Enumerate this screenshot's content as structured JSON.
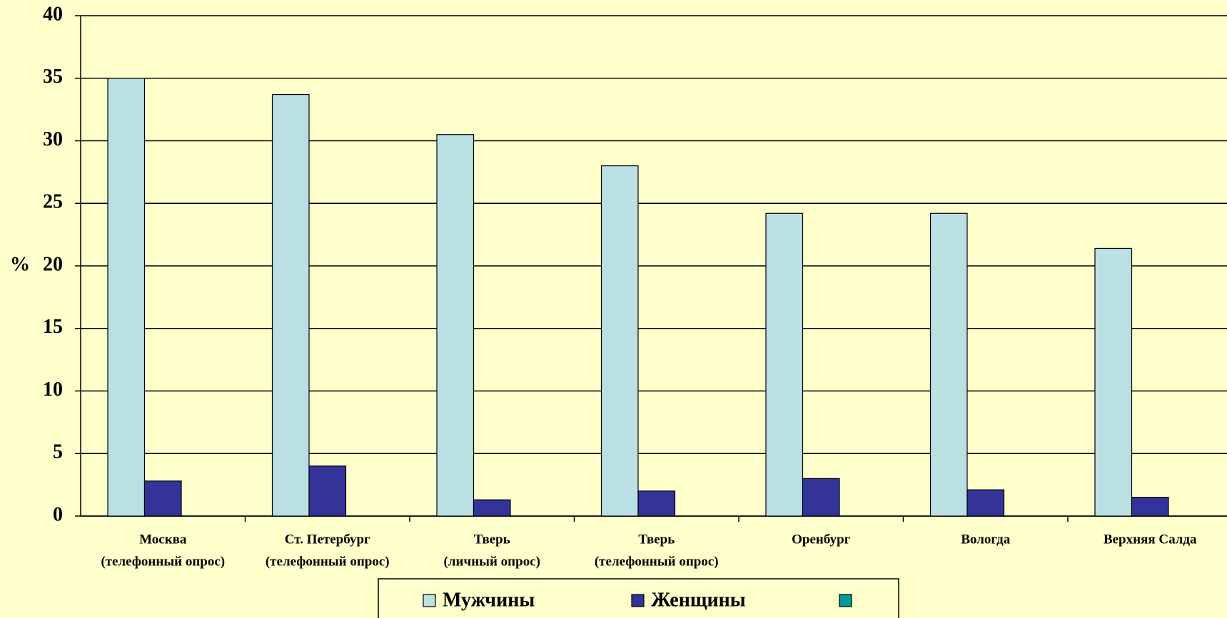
{
  "chart_data": {
    "type": "bar",
    "y_label": "%",
    "categories": [
      [
        "Москва",
        "(телефонный опрос)"
      ],
      [
        "Ст. Петербург",
        "(телефонный опрос)"
      ],
      [
        "Тверь",
        "(личный опрос)"
      ],
      [
        "Тверь",
        "(телефонный опрос)"
      ],
      [
        "Оренбург"
      ],
      [
        "Вологда"
      ],
      [
        "Верхняя Салда"
      ]
    ],
    "series": [
      {
        "name": "Мужчины",
        "color": "#bbe0e3",
        "values": [
          35,
          33.7,
          30.5,
          28,
          24.2,
          24.2,
          21.4
        ]
      },
      {
        "name": "Женщины",
        "color": "#333399",
        "values": [
          2.8,
          4,
          1.3,
          2,
          3,
          2.1,
          1.5
        ]
      },
      {
        "color": "#009999",
        "values": [
          null,
          null,
          null,
          null,
          null,
          null,
          null
        ]
      }
    ],
    "ylim": [
      0,
      40
    ],
    "yticks": [
      0,
      5,
      10,
      15,
      20,
      25,
      30,
      35,
      40
    ],
    "grid": true
  }
}
